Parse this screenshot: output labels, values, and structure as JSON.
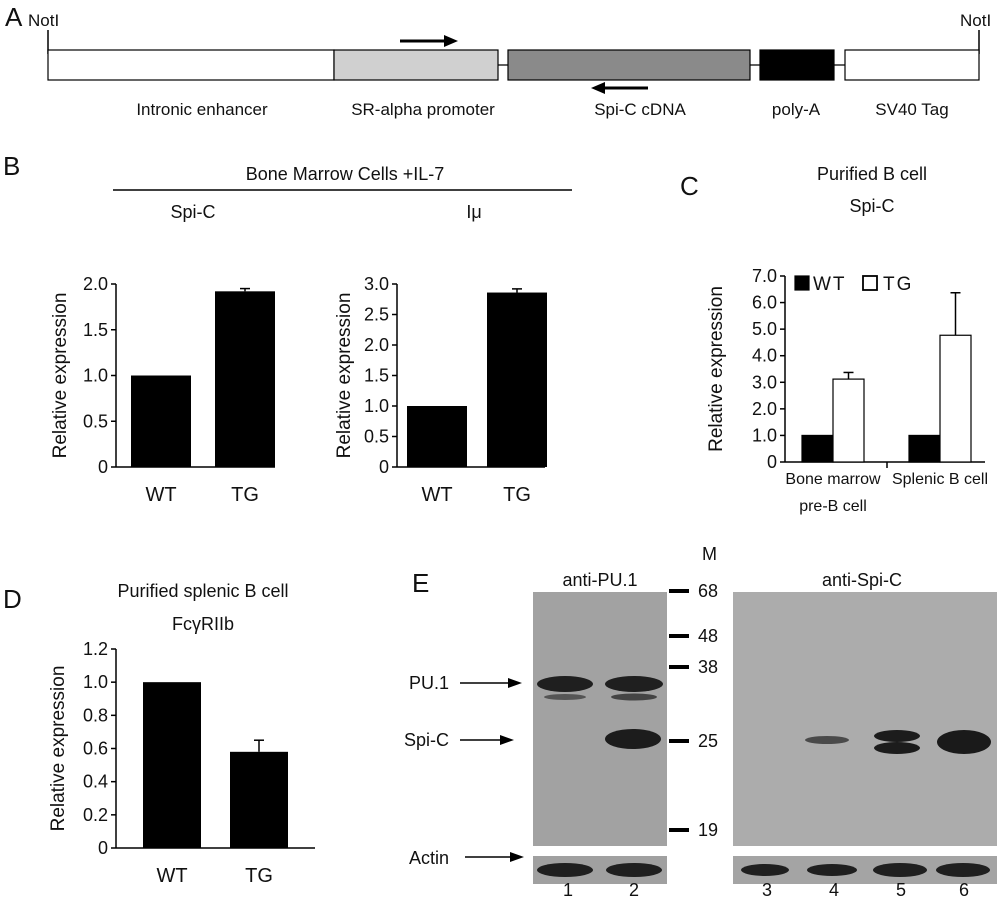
{
  "panel_a": {
    "letter": "A",
    "left_site": "NotI",
    "right_site": "NotI",
    "segments": [
      {
        "label": "Intronic enhancer",
        "fill": "#ffffff"
      },
      {
        "label": "SR-alpha promoter",
        "fill": "#d0d0d0"
      },
      {
        "label": "Spi-C cDNA",
        "fill": "#8a8a8a"
      },
      {
        "label": "poly-A",
        "fill": "#000000"
      },
      {
        "label": "SV40 Tag",
        "fill": "#ffffff"
      }
    ]
  },
  "panel_b": {
    "letter": "B",
    "header": "Bone Marrow Cells +IL-7"
  },
  "panel_c": {
    "letter": "C",
    "title_line1": "Purified B cell",
    "title_line2": "Spi-C"
  },
  "panel_d": {
    "letter": "D",
    "title_line1": "Purified splenic B cell",
    "title_line2": "FcγRIIb"
  },
  "panel_e": {
    "letter": "E",
    "marker_header": "M",
    "marker_labels": [
      "68",
      "48",
      "38",
      "25",
      "19"
    ],
    "blot1_title": "anti-PU.1",
    "blot2_title": "anti-Spi-C",
    "arrow_labels": [
      "PU.1",
      "Spi-C",
      "Actin"
    ],
    "lane_numbers": [
      "1",
      "2",
      "3",
      "4",
      "5",
      "6"
    ]
  },
  "colors": {
    "wt": "#000000",
    "tg": "#ffffff",
    "bar_dark": "#000000"
  },
  "chart_data": [
    {
      "type": "bar",
      "title": "Spi-C",
      "ylabel": "Relative expression",
      "categories": [
        "WT",
        "TG"
      ],
      "values": [
        1.0,
        1.92
      ],
      "errors": [
        0,
        0.03
      ],
      "ylim": [
        0,
        2.0
      ],
      "yticks": [
        "0",
        "0.5",
        "1.0",
        "1.5",
        "2.0"
      ]
    },
    {
      "type": "bar",
      "title": "Iμ",
      "ylabel": "Relative expression",
      "categories": [
        "WT",
        "TG"
      ],
      "values": [
        1.0,
        2.86
      ],
      "errors": [
        0,
        0.06
      ],
      "ylim": [
        0,
        3.0
      ],
      "yticks": [
        "0",
        "0.5",
        "1.0",
        "1.5",
        "2.0",
        "2.5",
        "3.0"
      ]
    },
    {
      "type": "bar",
      "ylabel": "Relative expression",
      "categories": [
        "Bone marrow pre-B cell",
        "Splenic B cell"
      ],
      "category_lines": [
        [
          "Bone marrow",
          "pre-B cell"
        ],
        [
          "Splenic B cell"
        ]
      ],
      "series": [
        {
          "name": "WT",
          "values": [
            1.0,
            1.0
          ],
          "errors": [
            0,
            0
          ]
        },
        {
          "name": "TG",
          "values": [
            3.12,
            4.77
          ],
          "errors": [
            0.25,
            1.6
          ]
        }
      ],
      "ylim": [
        0,
        7.0
      ],
      "yticks": [
        "0",
        "1.0",
        "2.0",
        "3.0",
        "4.0",
        "5.0",
        "6.0",
        "7.0"
      ],
      "legend": "top-left"
    },
    {
      "type": "bar",
      "ylabel": "Relative expression",
      "categories": [
        "WT",
        "TG"
      ],
      "values": [
        1.0,
        0.58
      ],
      "errors": [
        0,
        0.07
      ],
      "ylim": [
        0,
        1.2
      ],
      "yticks": [
        "0",
        "0.2",
        "0.4",
        "0.6",
        "0.8",
        "1.0",
        "1.2"
      ]
    }
  ]
}
